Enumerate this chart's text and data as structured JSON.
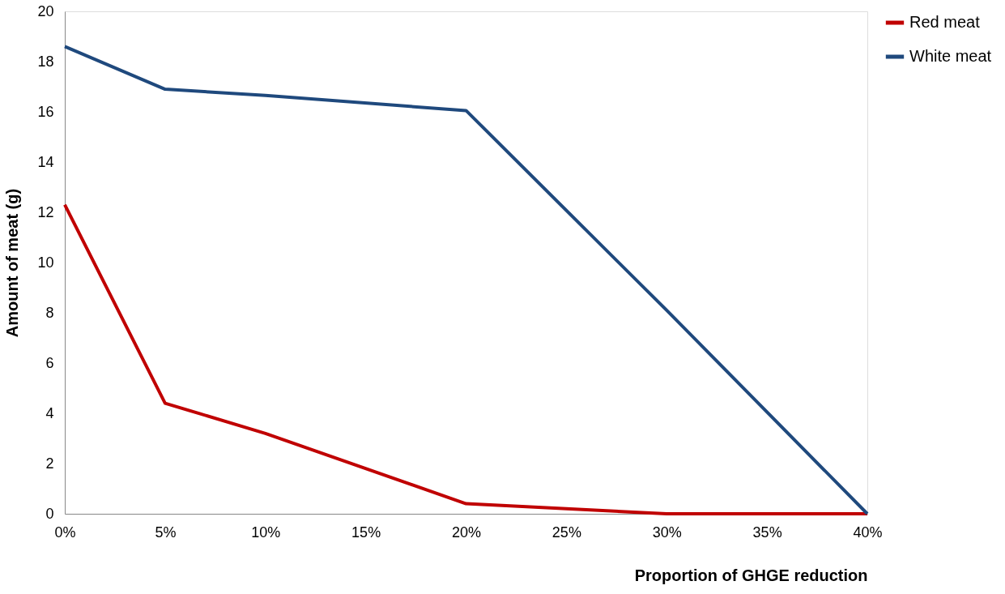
{
  "chart_data": {
    "type": "line",
    "xlabel": "Proportion of GHGE reduction",
    "ylabel": "Amount of meat (g)",
    "x": [
      0,
      5,
      10,
      20,
      30,
      40
    ],
    "series": [
      {
        "name": "Red meat",
        "color": "#c00000",
        "values": [
          12.3,
          4.4,
          3.2,
          0.4,
          0,
          0
        ]
      },
      {
        "name": "White meat",
        "color": "#1f497d",
        "values": [
          18.6,
          16.9,
          16.65,
          16.05,
          8.1,
          0
        ]
      }
    ],
    "xlim": [
      0,
      40
    ],
    "xticks": [
      {
        "value": 0,
        "label": "0%"
      },
      {
        "value": 5,
        "label": "5%"
      },
      {
        "value": 10,
        "label": "10%"
      },
      {
        "value": 15,
        "label": "15%"
      },
      {
        "value": 20,
        "label": "20%"
      },
      {
        "value": 25,
        "label": "25%"
      },
      {
        "value": 30,
        "label": "30%"
      },
      {
        "value": 35,
        "label": "35%"
      },
      {
        "value": 40,
        "label": "40%"
      }
    ],
    "ylim": [
      0,
      20
    ],
    "yticks": [
      0,
      2,
      4,
      6,
      8,
      10,
      12,
      14,
      16,
      18,
      20
    ],
    "grid": false,
    "legend": "right",
    "marker": "none",
    "line_style": "solid"
  }
}
